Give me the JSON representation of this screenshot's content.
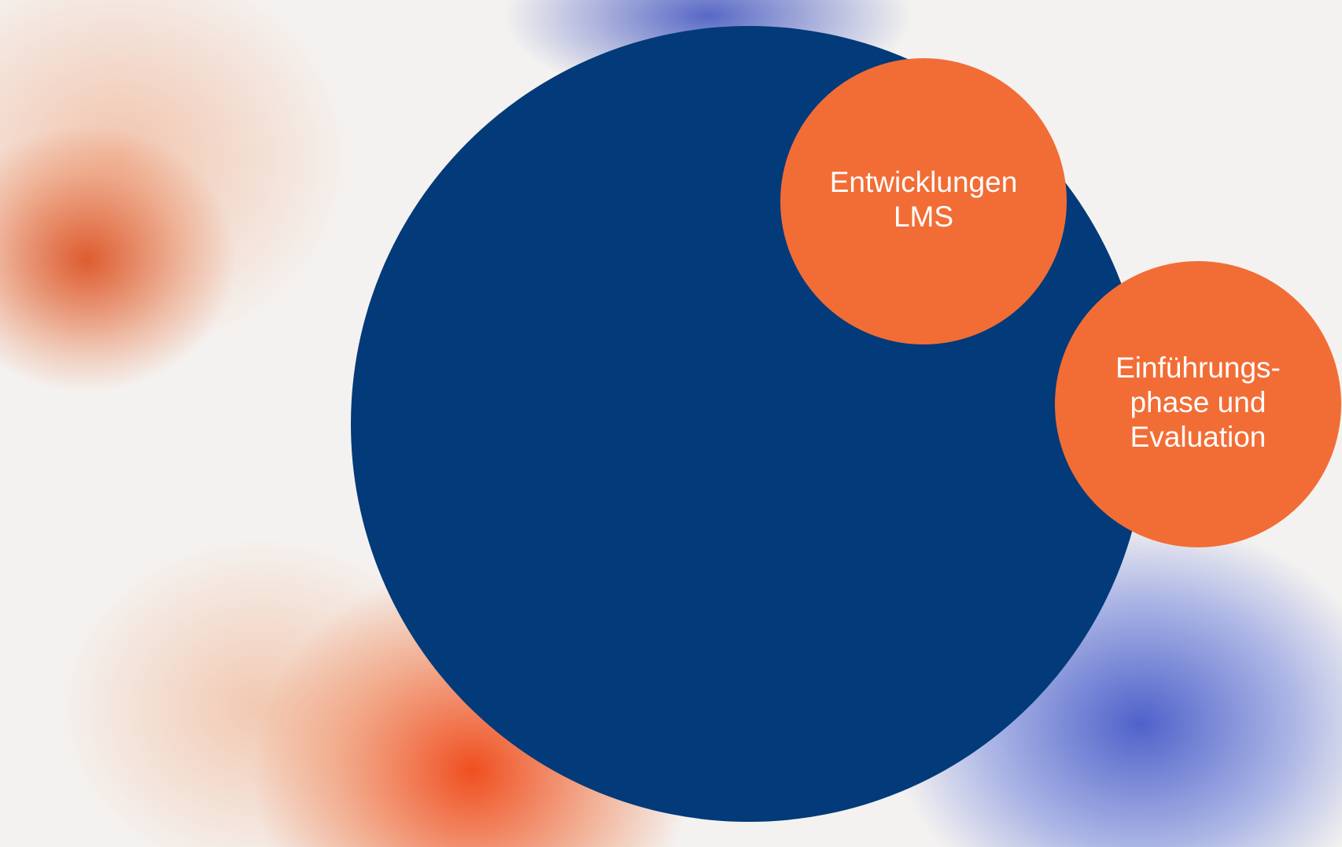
{
  "nodes": [
    {
      "lines": [
        "Entwicklungen",
        "LMS"
      ]
    },
    {
      "lines": [
        "Einführungs-",
        "phase und",
        "Evaluation"
      ]
    }
  ]
}
